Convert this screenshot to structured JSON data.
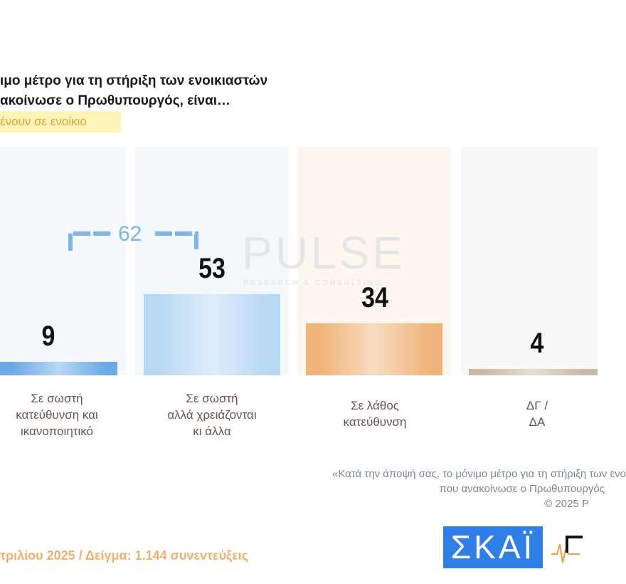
{
  "title_lines": [
    "ιμο μέτρο για τη στήριξη των ενοικιαστών",
    "ακοίνωσε ο Πρωθυπουργός, είναι…"
  ],
  "subtitle": "ένουν σε ενοίκιο",
  "watermark": {
    "brand": "PULSE",
    "tagline": "RESEARCH & CONSULTING"
  },
  "chart_data": {
    "type": "bar",
    "categories": [
      [
        "Σε σωστή",
        "κατεύθυνση και",
        "ικανοποιητικό"
      ],
      [
        "Σε σωστή",
        "αλλά χρειάζονται",
        "κι άλλα"
      ],
      [
        "Σε λάθος",
        "κατεύθυνση"
      ],
      [
        "ΔΓ /",
        "ΔΑ"
      ]
    ],
    "values": [
      9,
      53,
      34,
      4
    ],
    "value_labels": [
      "9",
      "53",
      "34",
      "4"
    ],
    "colors": [
      "#6aaae6",
      "#b8d8f4",
      "#f0b47a",
      "#c9b8a4"
    ],
    "column_bg": [
      "#f5f9fd",
      "#f3f8fd",
      "#fdf7f0",
      "#faf8f6"
    ],
    "bracket": {
      "label": "62",
      "spans": [
        0,
        1
      ],
      "color": "#7fb4e4"
    }
  },
  "note_lines": [
    "«Κατά την άποψή σας, το μόνιμο μέτρο για τη στήριξη των ενο",
    "που ανακοίνωσε ο Πρωθυπουργός",
    "©  2025  P"
  ],
  "footer": "τριλίου 2025  /  Δείγμα:  1.144 συνεντεύξεις",
  "logos": {
    "skai": "ΣΚΑΪ",
    "pulse": "PULSE"
  }
}
